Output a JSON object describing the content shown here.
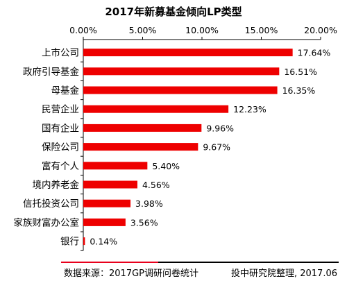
{
  "chart_data": {
    "type": "bar",
    "orientation": "horizontal",
    "title": "2017年新募基金倾向LP类型",
    "categories": [
      "上市公司",
      "政府引导基金",
      "母基金",
      "民营企业",
      "国有企业",
      "保险公司",
      "富有个人",
      "境内养老金",
      "信托投资公司",
      "家族财富办公室",
      "银行"
    ],
    "values": [
      17.64,
      16.51,
      16.35,
      12.23,
      9.96,
      9.67,
      5.4,
      4.56,
      3.98,
      3.56,
      0.14
    ],
    "data_labels": [
      "17.64%",
      "16.51%",
      "16.35%",
      "12.23%",
      "9.96%",
      "9.67%",
      "5.40%",
      "4.56%",
      "3.98%",
      "3.56%",
      "0.14%"
    ],
    "xlim": [
      0,
      20
    ],
    "x_ticks": [
      0,
      5,
      10,
      15,
      20
    ],
    "x_tick_labels": [
      "0.00%",
      "5.00%",
      "10.00%",
      "15.00%",
      "20.00%"
    ],
    "x_axis_position": "top",
    "grid": false,
    "legend": "none",
    "bar_color": "#ee0000"
  },
  "footer": {
    "source": "数据来源：2017GP调研问卷统计",
    "credit": "投中研究院整理, 2017.06",
    "accent_color": "#e8001c"
  }
}
